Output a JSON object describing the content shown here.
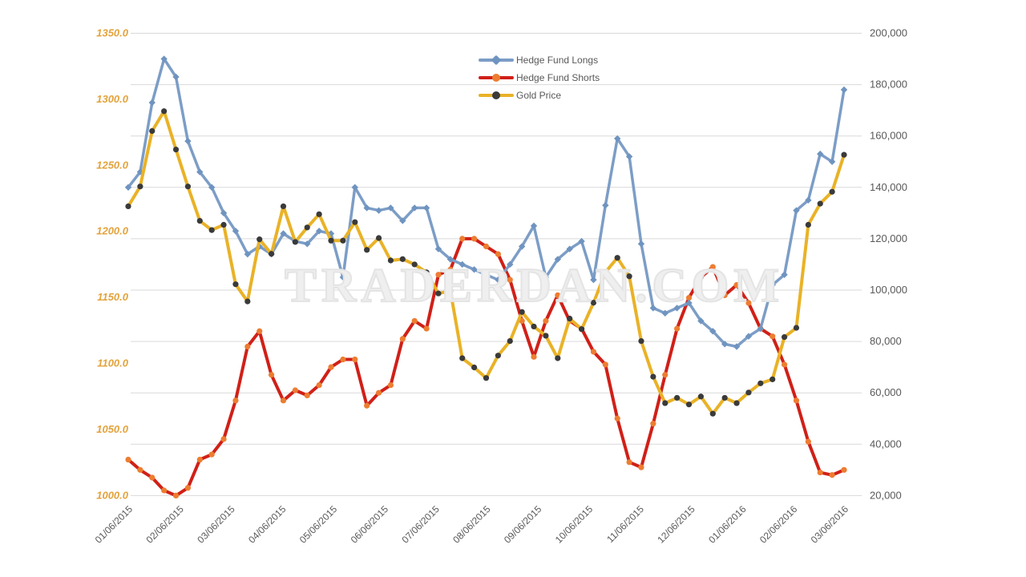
{
  "watermark": "TRADERDAN.COM",
  "legend": {
    "items": [
      {
        "label": "Hedge Fund Longs",
        "color": "#7c9dc6",
        "marker": "#6f94c0",
        "shape": "diamond"
      },
      {
        "label": "Hedge Fund Shorts",
        "color": "#d02018",
        "marker": "#ed7d31",
        "shape": "circle"
      },
      {
        "label": "Gold Price",
        "color": "#e9b227",
        "marker": "#3a3a3a",
        "shape": "circle"
      }
    ]
  },
  "colors": {
    "gridline": "#d9d9d9",
    "left_axis_text": "#e3a33c",
    "right_axis_text": "#595959",
    "x_axis_text": "#595959",
    "background": "#ffffff"
  },
  "chart_data": {
    "type": "line",
    "title": "",
    "legend_position": "top-center",
    "grid": "horizontal",
    "left_axis": {
      "min": 1000,
      "max": 1350,
      "tick_labels": [
        "1000.0",
        "1050.0",
        "1100.0",
        "1150.0",
        "1200.0",
        "1250.0",
        "1300.0",
        "1350.0"
      ],
      "tick_values": [
        1000,
        1050,
        1100,
        1150,
        1200,
        1250,
        1300,
        1350
      ]
    },
    "right_axis": {
      "min": 20000,
      "max": 200000,
      "tick_labels": [
        "20,000",
        "40,000",
        "60,000",
        "80,000",
        "100,000",
        "120,000",
        "140,000",
        "160,000",
        "180,000",
        "200,000"
      ],
      "tick_values": [
        20000,
        40000,
        60000,
        80000,
        100000,
        120000,
        140000,
        160000,
        180000,
        200000
      ]
    },
    "x_axis": {
      "tick_labels": [
        "01/06/2015",
        "02/06/2015",
        "03/06/2015",
        "04/06/2015",
        "05/06/2015",
        "06/06/2015",
        "07/06/2015",
        "08/06/2015",
        "09/06/2015",
        "10/06/2015",
        "11/06/2015",
        "12/06/2015",
        "01/06/2016",
        "02/06/2016",
        "03/06/2016"
      ]
    },
    "x": [
      "01/06/2015",
      "01/13/2015",
      "01/20/2015",
      "01/27/2015",
      "02/03/2015",
      "02/10/2015",
      "02/17/2015",
      "02/24/2015",
      "03/03/2015",
      "03/10/2015",
      "03/17/2015",
      "03/24/2015",
      "03/31/2015",
      "04/07/2015",
      "04/14/2015",
      "04/21/2015",
      "04/28/2015",
      "05/05/2015",
      "05/12/2015",
      "05/19/2015",
      "05/26/2015",
      "06/02/2015",
      "06/09/2015",
      "06/16/2015",
      "06/23/2015",
      "06/30/2015",
      "07/07/2015",
      "07/14/2015",
      "07/21/2015",
      "07/28/2015",
      "08/04/2015",
      "08/11/2015",
      "08/18/2015",
      "08/25/2015",
      "09/01/2015",
      "09/08/2015",
      "09/15/2015",
      "09/22/2015",
      "09/29/2015",
      "10/06/2015",
      "10/13/2015",
      "10/20/2015",
      "10/27/2015",
      "11/03/2015",
      "11/10/2015",
      "11/17/2015",
      "11/24/2015",
      "12/01/2015",
      "12/08/2015",
      "12/15/2015",
      "12/22/2015",
      "12/29/2015",
      "01/05/2016",
      "01/12/2016",
      "01/19/2016",
      "01/26/2016",
      "02/02/2016",
      "02/09/2016",
      "02/16/2016",
      "02/23/2016",
      "03/01/2016"
    ],
    "series": [
      {
        "name": "Hedge Fund Longs",
        "axis": "right",
        "values": [
          140000,
          146000,
          173000,
          190000,
          183000,
          158000,
          146000,
          140000,
          130000,
          123000,
          114000,
          117000,
          114000,
          122000,
          119000,
          118000,
          123000,
          122000,
          105000,
          140000,
          132000,
          131000,
          132000,
          127000,
          132000,
          132000,
          116000,
          112000,
          110000,
          108000,
          106000,
          104000,
          110000,
          117000,
          125000,
          105000,
          112000,
          116000,
          119000,
          104000,
          133000,
          159000,
          152000,
          118000,
          93000,
          91000,
          93000,
          95000,
          88000,
          84000,
          79000,
          78000,
          82000,
          85000,
          102000,
          106000,
          131000,
          135000,
          153000,
          150000,
          178000
        ]
      },
      {
        "name": "Hedge Fund Shorts",
        "axis": "right",
        "values": [
          34000,
          30000,
          27000,
          22000,
          20000,
          23000,
          34000,
          36000,
          42000,
          57000,
          78000,
          84000,
          67000,
          57000,
          61000,
          59000,
          63000,
          70000,
          73000,
          73000,
          55000,
          60000,
          63000,
          81000,
          88000,
          85000,
          106000,
          108000,
          120000,
          120000,
          117000,
          114000,
          104000,
          88000,
          74000,
          88000,
          98000,
          88000,
          85000,
          76000,
          71000,
          50000,
          33000,
          31000,
          48000,
          67000,
          85000,
          97000,
          105000,
          109000,
          98000,
          102000,
          95000,
          85000,
          82000,
          71000,
          57000,
          41000,
          29000,
          28000,
          30000
        ]
      },
      {
        "name": "Gold Price",
        "axis": "left",
        "values": [
          1219,
          1234,
          1276,
          1291,
          1262,
          1234,
          1208,
          1201,
          1205,
          1160,
          1147,
          1194,
          1183,
          1219,
          1192,
          1203,
          1213,
          1193,
          1193,
          1207,
          1186,
          1195,
          1178,
          1179,
          1175,
          1169,
          1153,
          1155,
          1104,
          1097,
          1089,
          1106,
          1117,
          1139,
          1128,
          1121,
          1104,
          1134,
          1126,
          1146,
          1169,
          1180,
          1166,
          1117,
          1090,
          1070,
          1074,
          1069,
          1075,
          1062,
          1074,
          1070,
          1078,
          1085,
          1088,
          1120,
          1127,
          1205,
          1221,
          1230,
          1258
        ]
      }
    ]
  }
}
